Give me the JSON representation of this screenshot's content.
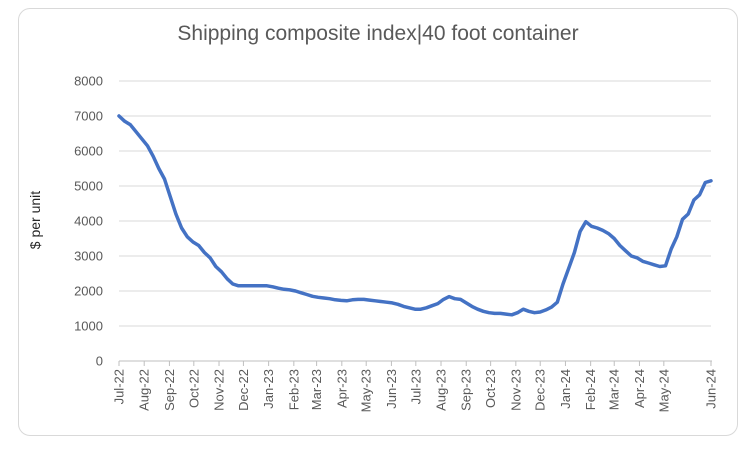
{
  "chart_data": {
    "type": "line",
    "title": "Shipping composite index|40 foot container",
    "xlabel": "",
    "ylabel": "$ per unit",
    "ylim": [
      0,
      8000
    ],
    "y_ticks": [
      0,
      1000,
      2000,
      3000,
      4000,
      5000,
      6000,
      7000,
      8000
    ],
    "x_ticks": [
      "Jul-22",
      "Aug-22",
      "Sep-22",
      "Oct-22",
      "Nov-22",
      "Dec-22",
      "Jan-23",
      "Feb-23",
      "Mar-23",
      "Apr-23",
      "May-23",
      "Jun-23",
      "Jul-23",
      "Aug-23",
      "Sep-23",
      "Oct-23",
      "Nov-23",
      "Dec-23",
      "Jan-24",
      "Feb-24",
      "Mar-24",
      "Apr-24",
      "May-24",
      "Jun-24"
    ],
    "grid": "horizontal",
    "legend": "none",
    "line_color": "#4472c4",
    "series": [
      {
        "x": [
          "2022-07-01",
          "2022-07-08",
          "2022-07-15",
          "2022-07-22",
          "2022-07-29",
          "2022-08-05",
          "2022-08-12",
          "2022-08-19",
          "2022-08-26",
          "2022-09-02",
          "2022-09-09",
          "2022-09-16",
          "2022-09-23",
          "2022-09-30",
          "2022-10-07",
          "2022-10-14",
          "2022-10-21",
          "2022-10-28",
          "2022-11-04",
          "2022-11-11",
          "2022-11-18",
          "2022-11-25",
          "2022-12-02",
          "2022-12-09",
          "2022-12-16",
          "2022-12-23",
          "2022-12-30",
          "2023-01-06",
          "2023-01-13",
          "2023-01-20",
          "2023-01-27",
          "2023-02-03",
          "2023-02-10",
          "2023-02-17",
          "2023-02-24",
          "2023-03-03",
          "2023-03-10",
          "2023-03-17",
          "2023-03-24",
          "2023-03-31",
          "2023-04-07",
          "2023-04-14",
          "2023-04-21",
          "2023-04-28",
          "2023-05-05",
          "2023-05-12",
          "2023-05-19",
          "2023-05-26",
          "2023-06-02",
          "2023-06-09",
          "2023-06-16",
          "2023-06-23",
          "2023-06-30",
          "2023-07-07",
          "2023-07-14",
          "2023-07-21",
          "2023-07-28",
          "2023-08-04",
          "2023-08-11",
          "2023-08-18",
          "2023-08-25",
          "2023-09-01",
          "2023-09-08",
          "2023-09-15",
          "2023-09-22",
          "2023-09-29",
          "2023-10-06",
          "2023-10-13",
          "2023-10-20",
          "2023-10-27",
          "2023-11-03",
          "2023-11-10",
          "2023-11-17",
          "2023-11-24",
          "2023-12-01",
          "2023-12-08",
          "2023-12-15",
          "2023-12-22",
          "2023-12-29",
          "2024-01-05",
          "2024-01-12",
          "2024-01-19",
          "2024-01-26",
          "2024-02-02",
          "2024-02-09",
          "2024-02-16",
          "2024-02-23",
          "2024-03-01",
          "2024-03-08",
          "2024-03-15",
          "2024-03-22",
          "2024-03-29",
          "2024-04-05",
          "2024-04-12",
          "2024-04-19",
          "2024-04-26",
          "2024-05-03",
          "2024-05-10",
          "2024-05-17",
          "2024-05-24",
          "2024-05-31",
          "2024-06-07",
          "2024-06-14",
          "2024-06-21",
          "2024-06-28"
        ],
        "y": [
          7000,
          6850,
          6750,
          6550,
          6350,
          6150,
          5850,
          5500,
          5200,
          4700,
          4200,
          3800,
          3550,
          3400,
          3300,
          3100,
          2950,
          2700,
          2550,
          2350,
          2200,
          2150,
          2150,
          2150,
          2150,
          2150,
          2150,
          2120,
          2080,
          2050,
          2030,
          2000,
          1950,
          1900,
          1850,
          1820,
          1800,
          1780,
          1750,
          1730,
          1720,
          1750,
          1760,
          1760,
          1740,
          1720,
          1700,
          1680,
          1660,
          1620,
          1560,
          1520,
          1480,
          1480,
          1520,
          1580,
          1640,
          1760,
          1840,
          1780,
          1760,
          1660,
          1560,
          1480,
          1420,
          1380,
          1360,
          1360,
          1340,
          1320,
          1380,
          1480,
          1420,
          1380,
          1400,
          1460,
          1540,
          1680,
          2200,
          2650,
          3100,
          3700,
          3980,
          3850,
          3800,
          3730,
          3640,
          3500,
          3300,
          3150,
          3000,
          2950,
          2850,
          2800,
          2750,
          2700,
          2720,
          3200,
          3550,
          4050,
          4200,
          4600,
          4750,
          5100,
          5150
        ]
      }
    ]
  }
}
